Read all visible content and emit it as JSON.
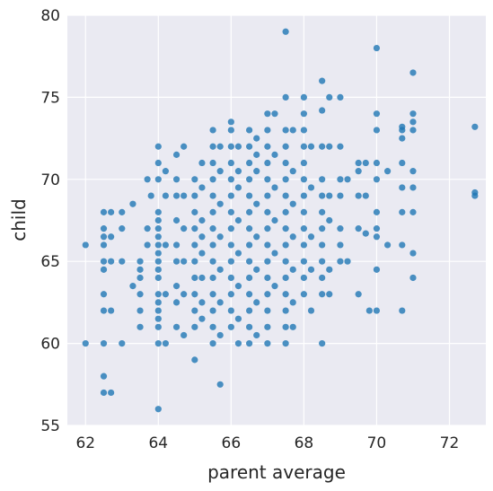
{
  "chart_data": {
    "type": "scatter",
    "title": "",
    "xlabel": "parent average",
    "ylabel": "child",
    "xlim": [
      61.5,
      73.0
    ],
    "ylim": [
      55,
      80
    ],
    "xticks": [
      62,
      64,
      66,
      68,
      70,
      72
    ],
    "yticks": [
      55,
      60,
      65,
      70,
      75,
      80
    ],
    "grid": true,
    "colors": {
      "background": "#eaeaf2",
      "grid": "#ffffff",
      "point": "#1f77b4"
    },
    "series": [
      {
        "points": [
          [
            62,
            66
          ],
          [
            62,
            60
          ],
          [
            62.5,
            68
          ],
          [
            62.5,
            67
          ],
          [
            62.5,
            66.5
          ],
          [
            62.5,
            66
          ],
          [
            62.5,
            65
          ],
          [
            62.5,
            64.5
          ],
          [
            62.5,
            63
          ],
          [
            62.5,
            62
          ],
          [
            62.5,
            60
          ],
          [
            62.5,
            58
          ],
          [
            62.5,
            57
          ],
          [
            62.7,
            68
          ],
          [
            62.7,
            66.5
          ],
          [
            62.7,
            65
          ],
          [
            62.7,
            62
          ],
          [
            62.7,
            57
          ],
          [
            63,
            68
          ],
          [
            63,
            67
          ],
          [
            63,
            65
          ],
          [
            63,
            60
          ],
          [
            63.3,
            68.5
          ],
          [
            63.3,
            63.5
          ],
          [
            63.5,
            65
          ],
          [
            63.5,
            64.5
          ],
          [
            63.5,
            64
          ],
          [
            63.5,
            63
          ],
          [
            63.5,
            62
          ],
          [
            63.5,
            61
          ],
          [
            63.7,
            70
          ],
          [
            63.7,
            67
          ],
          [
            63.7,
            66
          ],
          [
            63.8,
            69
          ],
          [
            64,
            72
          ],
          [
            64,
            71
          ],
          [
            64,
            70
          ],
          [
            64,
            68
          ],
          [
            64,
            67.5
          ],
          [
            64,
            67
          ],
          [
            64,
            66.5
          ],
          [
            64,
            66
          ],
          [
            64,
            65.5
          ],
          [
            64,
            65
          ],
          [
            64,
            64.5
          ],
          [
            64,
            64
          ],
          [
            64,
            63
          ],
          [
            64,
            62.5
          ],
          [
            64,
            62
          ],
          [
            64,
            61.5
          ],
          [
            64,
            61
          ],
          [
            64,
            60
          ],
          [
            64,
            56
          ],
          [
            64.2,
            70.5
          ],
          [
            64.2,
            69
          ],
          [
            64.2,
            66
          ],
          [
            64.2,
            63
          ],
          [
            64.2,
            60
          ],
          [
            64.5,
            71.5
          ],
          [
            64.5,
            70
          ],
          [
            64.5,
            69
          ],
          [
            64.5,
            67.5
          ],
          [
            64.5,
            66
          ],
          [
            64.5,
            65
          ],
          [
            64.5,
            63.5
          ],
          [
            64.5,
            62.5
          ],
          [
            64.5,
            61
          ],
          [
            64.7,
            72
          ],
          [
            64.7,
            69
          ],
          [
            64.7,
            67
          ],
          [
            64.7,
            65
          ],
          [
            64.7,
            63
          ],
          [
            64.7,
            60.5
          ],
          [
            65,
            70
          ],
          [
            65,
            69
          ],
          [
            65,
            68
          ],
          [
            65,
            67
          ],
          [
            65,
            66
          ],
          [
            65,
            65
          ],
          [
            65,
            64
          ],
          [
            65,
            63
          ],
          [
            65,
            62
          ],
          [
            65,
            61
          ],
          [
            65,
            59
          ],
          [
            65.2,
            71
          ],
          [
            65.2,
            69.5
          ],
          [
            65.2,
            67.5
          ],
          [
            65.2,
            66.5
          ],
          [
            65.2,
            65.5
          ],
          [
            65.2,
            64
          ],
          [
            65.2,
            62.5
          ],
          [
            65.2,
            61.5
          ],
          [
            65.5,
            73
          ],
          [
            65.5,
            72
          ],
          [
            65.5,
            71
          ],
          [
            65.5,
            70
          ],
          [
            65.5,
            69
          ],
          [
            65.5,
            68
          ],
          [
            65.5,
            67
          ],
          [
            65.5,
            66
          ],
          [
            65.5,
            65
          ],
          [
            65.5,
            64
          ],
          [
            65.5,
            63
          ],
          [
            65.5,
            62
          ],
          [
            65.5,
            61
          ],
          [
            65.5,
            60
          ],
          [
            65.7,
            72
          ],
          [
            65.7,
            70.5
          ],
          [
            65.7,
            68.5
          ],
          [
            65.7,
            66.5
          ],
          [
            65.7,
            64.5
          ],
          [
            65.7,
            62.5
          ],
          [
            65.7,
            60.5
          ],
          [
            65.7,
            57.5
          ],
          [
            66,
            73.5
          ],
          [
            66,
            73
          ],
          [
            66,
            72
          ],
          [
            66,
            71
          ],
          [
            66,
            70
          ],
          [
            66,
            69
          ],
          [
            66,
            68
          ],
          [
            66,
            67
          ],
          [
            66,
            66
          ],
          [
            66,
            65
          ],
          [
            66,
            64
          ],
          [
            66,
            63
          ],
          [
            66,
            62
          ],
          [
            66,
            61
          ],
          [
            66.2,
            72
          ],
          [
            66.2,
            70.5
          ],
          [
            66.2,
            69.5
          ],
          [
            66.2,
            67.5
          ],
          [
            66.2,
            65.5
          ],
          [
            66.2,
            63.5
          ],
          [
            66.2,
            61.5
          ],
          [
            66.2,
            60
          ],
          [
            66.5,
            73
          ],
          [
            66.5,
            72
          ],
          [
            66.5,
            71
          ],
          [
            66.5,
            70
          ],
          [
            66.5,
            69
          ],
          [
            66.5,
            68
          ],
          [
            66.5,
            67
          ],
          [
            66.5,
            66
          ],
          [
            66.5,
            65
          ],
          [
            66.5,
            64
          ],
          [
            66.5,
            63
          ],
          [
            66.5,
            62
          ],
          [
            66.5,
            61
          ],
          [
            66.5,
            60
          ],
          [
            66.7,
            72.5
          ],
          [
            66.7,
            71.5
          ],
          [
            66.7,
            70.5
          ],
          [
            66.7,
            68.5
          ],
          [
            66.7,
            66.5
          ],
          [
            66.7,
            64.5
          ],
          [
            66.7,
            62.5
          ],
          [
            66.7,
            60.5
          ],
          [
            67,
            74
          ],
          [
            67,
            73
          ],
          [
            67,
            72
          ],
          [
            67,
            71
          ],
          [
            67,
            70
          ],
          [
            67,
            69
          ],
          [
            67,
            68
          ],
          [
            67,
            67
          ],
          [
            67,
            66
          ],
          [
            67,
            65
          ],
          [
            67,
            64
          ],
          [
            67,
            63
          ],
          [
            67,
            62
          ],
          [
            67,
            61
          ],
          [
            67,
            60
          ],
          [
            67.2,
            74
          ],
          [
            67.2,
            71.5
          ],
          [
            67.2,
            69.5
          ],
          [
            67.2,
            67.5
          ],
          [
            67.2,
            65.5
          ],
          [
            67.2,
            63.5
          ],
          [
            67.5,
            79
          ],
          [
            67.5,
            75
          ],
          [
            67.5,
            73
          ],
          [
            67.5,
            72
          ],
          [
            67.5,
            71
          ],
          [
            67.5,
            70
          ],
          [
            67.5,
            69
          ],
          [
            67.5,
            68
          ],
          [
            67.5,
            67
          ],
          [
            67.5,
            66
          ],
          [
            67.5,
            65
          ],
          [
            67.5,
            64
          ],
          [
            67.5,
            63
          ],
          [
            67.5,
            62
          ],
          [
            67.5,
            61
          ],
          [
            67.5,
            60
          ],
          [
            67.7,
            73
          ],
          [
            67.7,
            70.5
          ],
          [
            67.7,
            68.5
          ],
          [
            67.7,
            66.5
          ],
          [
            67.7,
            64.5
          ],
          [
            67.7,
            62.5
          ],
          [
            67.7,
            61
          ],
          [
            68,
            75
          ],
          [
            68,
            74
          ],
          [
            68,
            73
          ],
          [
            68,
            72
          ],
          [
            68,
            71
          ],
          [
            68,
            70
          ],
          [
            68,
            69
          ],
          [
            68,
            68
          ],
          [
            68,
            67
          ],
          [
            68,
            66
          ],
          [
            68,
            65
          ],
          [
            68,
            64
          ],
          [
            68,
            63
          ],
          [
            68.2,
            72
          ],
          [
            68.2,
            69.5
          ],
          [
            68.2,
            66.5
          ],
          [
            68.2,
            64.5
          ],
          [
            68.2,
            62
          ],
          [
            68.5,
            76
          ],
          [
            68.5,
            74.2
          ],
          [
            68.5,
            72
          ],
          [
            68.5,
            70
          ],
          [
            68.5,
            69
          ],
          [
            68.5,
            68
          ],
          [
            68.5,
            67
          ],
          [
            68.5,
            66
          ],
          [
            68.5,
            65
          ],
          [
            68.5,
            64
          ],
          [
            68.5,
            63
          ],
          [
            68.5,
            60
          ],
          [
            68.7,
            75
          ],
          [
            68.7,
            72
          ],
          [
            68.7,
            69
          ],
          [
            68.7,
            67.5
          ],
          [
            68.7,
            64.5
          ],
          [
            68.7,
            63
          ],
          [
            69,
            75
          ],
          [
            69,
            72
          ],
          [
            69,
            70
          ],
          [
            69,
            69
          ],
          [
            69,
            67
          ],
          [
            69,
            66
          ],
          [
            69,
            65
          ],
          [
            69.2,
            70
          ],
          [
            69.2,
            65
          ],
          [
            69.5,
            71
          ],
          [
            69.5,
            70.5
          ],
          [
            69.5,
            69
          ],
          [
            69.5,
            67
          ],
          [
            69.5,
            63
          ],
          [
            69.7,
            71
          ],
          [
            69.7,
            69
          ],
          [
            69.7,
            66.7
          ],
          [
            69.8,
            62
          ],
          [
            70,
            78
          ],
          [
            70,
            74
          ],
          [
            70,
            73
          ],
          [
            70,
            71
          ],
          [
            70,
            70
          ],
          [
            70,
            68
          ],
          [
            70,
            67
          ],
          [
            70,
            66.5
          ],
          [
            70,
            64.5
          ],
          [
            70,
            62
          ],
          [
            70.3,
            70.5
          ],
          [
            70.3,
            66
          ],
          [
            70.7,
            73.2
          ],
          [
            70.7,
            73
          ],
          [
            70.7,
            72.5
          ],
          [
            70.7,
            71
          ],
          [
            70.7,
            69.5
          ],
          [
            70.7,
            68
          ],
          [
            70.7,
            66
          ],
          [
            70.7,
            62
          ],
          [
            71,
            76.5
          ],
          [
            71,
            74
          ],
          [
            71,
            73.5
          ],
          [
            71,
            73
          ],
          [
            71,
            70.5
          ],
          [
            71,
            69.5
          ],
          [
            71,
            68
          ],
          [
            71,
            65.5
          ],
          [
            71,
            64
          ],
          [
            72.7,
            73.2
          ],
          [
            72.7,
            69.2
          ],
          [
            72.7,
            69
          ]
        ]
      }
    ]
  }
}
